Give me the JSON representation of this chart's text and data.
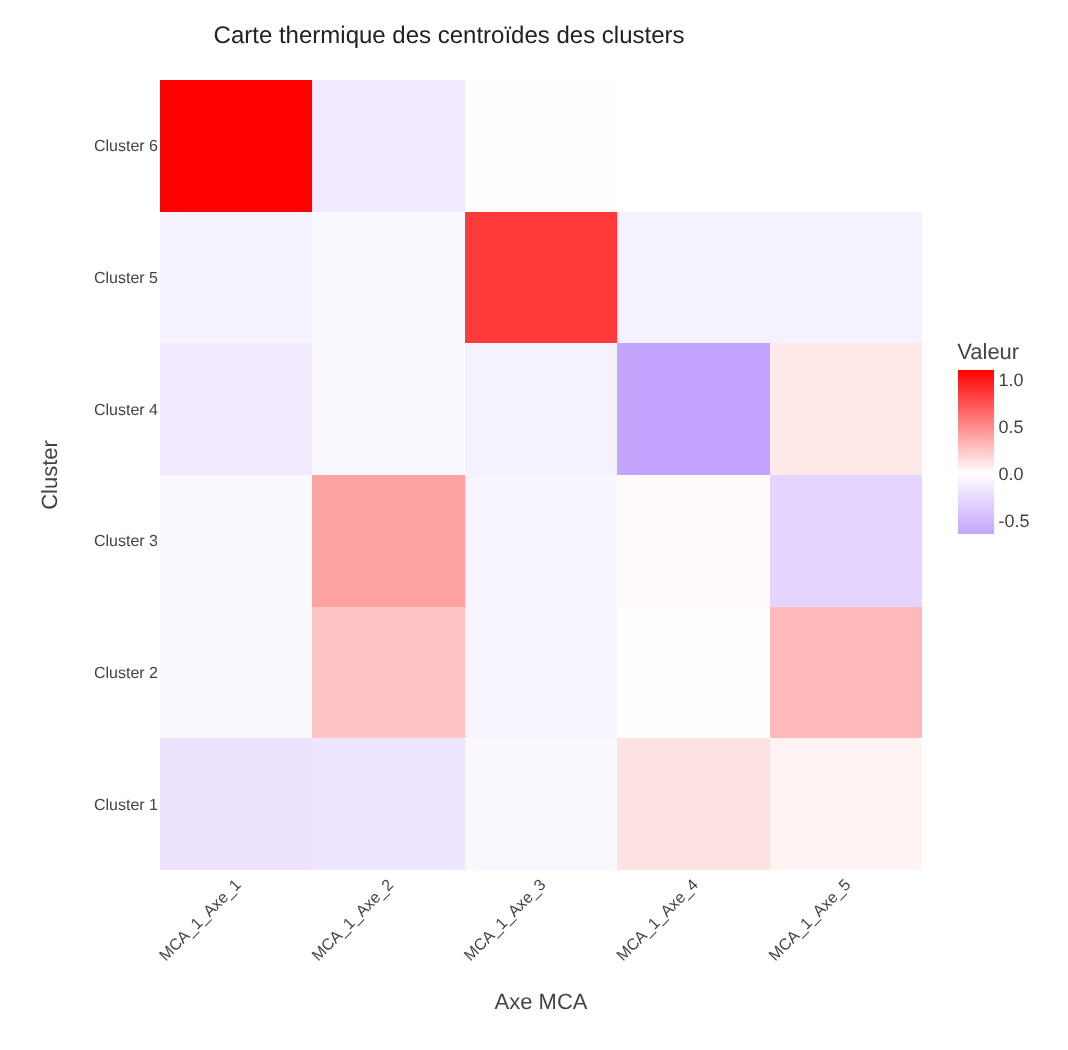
{
  "chart_data": {
    "type": "heatmap",
    "title": "Carte thermique des centroïdes des clusters",
    "xlabel": "Axe MCA",
    "ylabel": "Cluster",
    "clabel": "Valeur",
    "categories": [
      "MCA_1_Axe_1",
      "MCA_1_Axe_2",
      "MCA_1_Axe_3",
      "MCA_1_Axe_4",
      "MCA_1_Axe_5"
    ],
    "y_categories": [
      "Cluster 6",
      "Cluster 5",
      "Cluster 4",
      "Cluster 3",
      "Cluster 2",
      "Cluster 1"
    ],
    "cells": [
      [
        1.1,
        -0.15,
        -0.02,
        0.0,
        0.0
      ],
      [
        -0.1,
        -0.05,
        0.85,
        -0.1,
        -0.1
      ],
      [
        -0.15,
        -0.05,
        -0.1,
        -0.65,
        0.1
      ],
      [
        -0.05,
        0.4,
        -0.07,
        0.02,
        -0.3
      ],
      [
        -0.05,
        0.25,
        -0.07,
        0.01,
        0.3
      ],
      [
        -0.2,
        -0.18,
        -0.05,
        0.12,
        0.05
      ]
    ],
    "clim": [
      -0.65,
      1.1
    ],
    "cticks": [
      {
        "value": -0.5,
        "label": "-0.5"
      },
      {
        "value": 0,
        "label": "0.0"
      },
      {
        "value": 0.5,
        "label": "0.5"
      },
      {
        "value": 1,
        "label": "1.0"
      }
    ],
    "colors": [
      "#9966ff",
      "#ffffff",
      "#ff0000"
    ]
  }
}
